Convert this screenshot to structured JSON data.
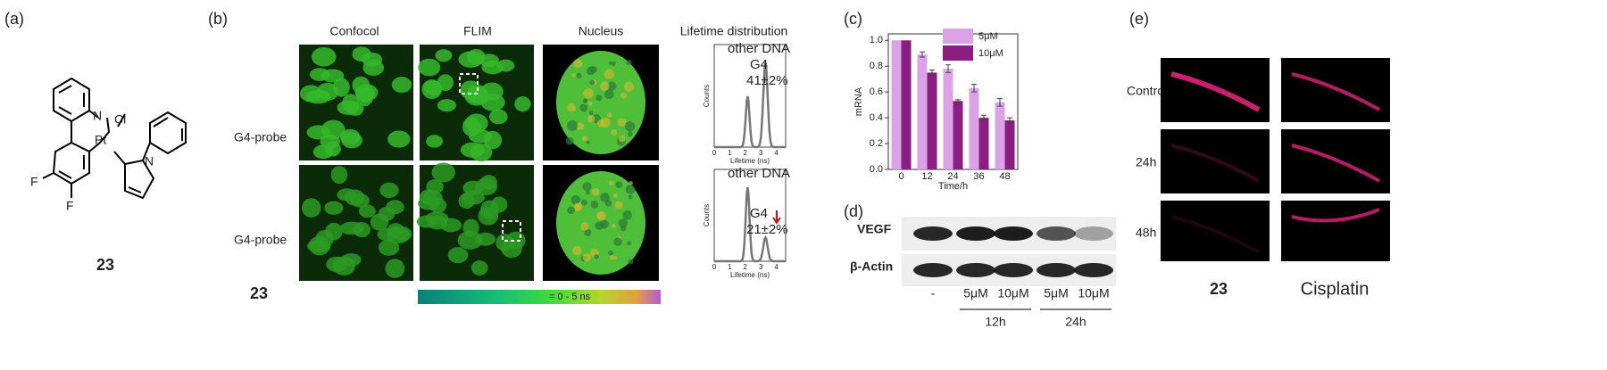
{
  "panels": {
    "a": "(a)",
    "b": "(b)",
    "c": "(c)",
    "d": "(d)",
    "e": "(e)"
  },
  "structure": {
    "atoms": [
      "N",
      "Cl",
      "Pt",
      "N",
      "F",
      "F"
    ],
    "compound": "23"
  },
  "flim": {
    "columns": [
      "Confocol",
      "FLIM",
      "Nucleus",
      "Lifetime distribution"
    ],
    "rows": [
      "G4-probe",
      "G4-probe"
    ],
    "compound": "23",
    "colorbar": "= 0 - 5 ns",
    "plots": [
      {
        "peak1": "other DNA",
        "peak2": "G4",
        "percent": "41±2%"
      },
      {
        "peak1": "other DNA",
        "peak2": "G4",
        "percent": "21±2%"
      }
    ],
    "y_label": "Counts",
    "x_label": "Lifetime (ns)",
    "x_ticks": [
      "0",
      "1",
      "2",
      "3",
      "4"
    ]
  },
  "chart_data": {
    "type": "bar",
    "y_label": "mRNA",
    "x_label": "Time/h",
    "categories": [
      "0",
      "12",
      "24",
      "36",
      "48"
    ],
    "series": [
      {
        "name": "5μM",
        "color": "#dba3e6",
        "values": [
          1.0,
          0.89,
          0.78,
          0.63,
          0.52
        ],
        "errors": [
          0,
          0.02,
          0.03,
          0.03,
          0.03
        ]
      },
      {
        "name": "10μM",
        "color": "#8a1e82",
        "values": [
          1.0,
          0.75,
          0.53,
          0.4,
          0.38
        ],
        "errors": [
          0,
          0.02,
          0.01,
          0.02,
          0.02
        ]
      }
    ],
    "ylim": [
      0,
      1.05
    ],
    "yticks": [
      {
        "value": 0,
        "label": "0.0"
      },
      0.2,
      0.4,
      0.6,
      0.8,
      {
        "value": 1,
        "label": "1.0"
      }
    ],
    "legend": "top-right"
  },
  "blot": {
    "proteins": [
      "VEGF",
      "β-Actin"
    ],
    "lanes": [
      "-",
      "5μM",
      "10μM",
      "5μM",
      "10μM"
    ],
    "times": [
      "12h",
      "24h"
    ]
  },
  "zebrafish": {
    "rows": [
      "Control",
      "24h",
      "48h"
    ],
    "columns": [
      "23",
      "Cisplatin"
    ]
  }
}
